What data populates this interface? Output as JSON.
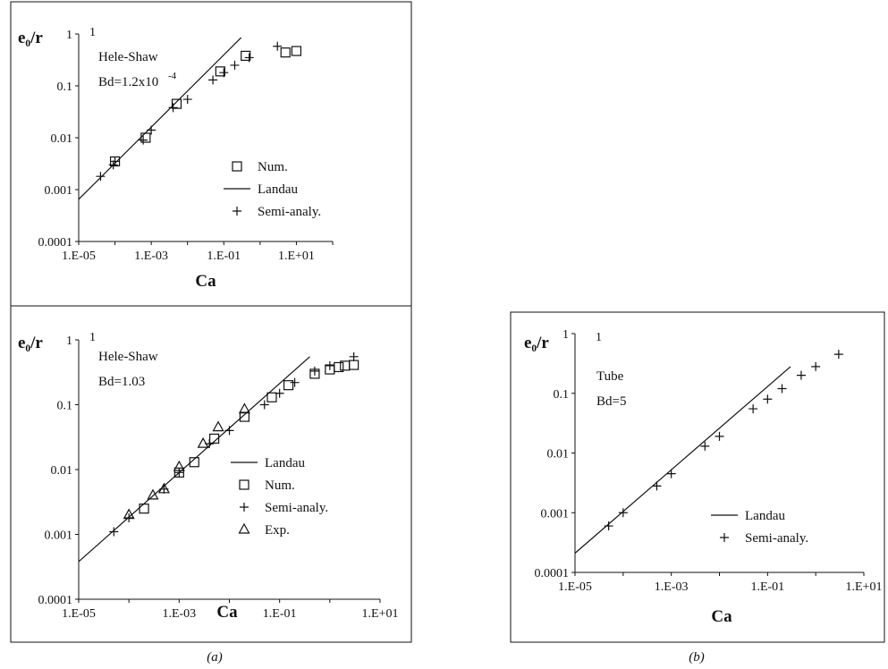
{
  "captions": {
    "a": "(a)",
    "b": "(b)"
  },
  "chart_data": [
    {
      "type": "scatter",
      "panel": "a-top",
      "ylabel": "e₀/r",
      "xlabel": "Ca",
      "xscale": "log",
      "yscale": "log",
      "xlim": [
        1e-05,
        100
      ],
      "ylim": [
        0.0001,
        1
      ],
      "x_ticks": [
        "1.E-05",
        "1.E-03",
        "1.E-01",
        "1.E+01"
      ],
      "y_ticks": [
        "0.0001",
        "0.001",
        "0.01",
        "0.1",
        "1"
      ],
      "annotation": [
        "Hele-Shaw",
        "Bd=1.2x10",
        "-4"
      ],
      "legend": {
        "placement": "bottom-right"
      },
      "series": [
        {
          "name": "Num.",
          "marker": "square",
          "x": [
            0.0001,
            0.0007,
            0.005,
            0.08,
            0.4,
            5,
            10
          ],
          "y": [
            0.0035,
            0.01,
            0.045,
            0.19,
            0.38,
            0.44,
            0.47
          ]
        },
        {
          "name": "Landau",
          "marker": "line",
          "x": [
            1e-05,
            0.3
          ],
          "y": [
            0.00065,
            0.85
          ]
        },
        {
          "name": "Semi-analy.",
          "marker": "plus",
          "x": [
            4e-05,
            9e-05,
            0.0001,
            0.0006,
            0.001,
            0.004,
            0.01,
            0.05,
            0.1,
            0.2,
            0.5,
            3
          ],
          "y": [
            0.0018,
            0.003,
            0.0035,
            0.009,
            0.014,
            0.038,
            0.055,
            0.13,
            0.18,
            0.25,
            0.35,
            0.58
          ]
        }
      ]
    },
    {
      "type": "scatter",
      "panel": "a-bottom",
      "ylabel": "e₀/r",
      "xlabel": "Ca",
      "xscale": "log",
      "yscale": "log",
      "xlim": [
        1e-05,
        10
      ],
      "ylim": [
        0.0001,
        1
      ],
      "x_ticks": [
        "1.E-05",
        "1.E-03",
        "1.E-01",
        "1.E+01"
      ],
      "y_ticks": [
        "0.0001",
        "0.001",
        "0.01",
        "0.1",
        "1"
      ],
      "annotation": [
        "Hele-Shaw",
        "Bd=1.03"
      ],
      "legend": {
        "placement": "bottom-right"
      },
      "series": [
        {
          "name": "Landau",
          "marker": "line",
          "x": [
            1e-05,
            0.4
          ],
          "y": [
            0.00038,
            0.55
          ]
        },
        {
          "name": "Num.",
          "marker": "square",
          "x": [
            0.0002,
            0.001,
            0.002,
            0.005,
            0.02,
            0.07,
            0.15,
            0.5,
            1,
            1.5,
            2,
            3
          ],
          "y": [
            0.0025,
            0.009,
            0.013,
            0.03,
            0.065,
            0.13,
            0.2,
            0.3,
            0.35,
            0.38,
            0.4,
            0.41
          ]
        },
        {
          "name": "Semi-analy.",
          "marker": "plus",
          "x": [
            5e-05,
            0.0001,
            0.0005,
            0.001,
            0.004,
            0.01,
            0.05,
            0.1,
            0.2,
            0.5,
            1,
            3
          ],
          "y": [
            0.0011,
            0.0018,
            0.005,
            0.009,
            0.025,
            0.04,
            0.1,
            0.15,
            0.22,
            0.33,
            0.4,
            0.55
          ]
        },
        {
          "name": "Exp.",
          "marker": "triangle",
          "x": [
            0.0001,
            0.0003,
            0.0005,
            0.001,
            0.003,
            0.006,
            0.02
          ],
          "y": [
            0.002,
            0.004,
            0.005,
            0.011,
            0.025,
            0.045,
            0.085
          ]
        }
      ]
    },
    {
      "type": "scatter",
      "panel": "b",
      "ylabel": "e₀/r",
      "xlabel": "Ca",
      "xscale": "log",
      "yscale": "log",
      "xlim": [
        1e-05,
        10
      ],
      "ylim": [
        0.0001,
        1
      ],
      "x_ticks": [
        "1.E-05",
        "1.E-03",
        "1.E-01",
        "1.E+01"
      ],
      "y_ticks": [
        "0.0001",
        "0.001",
        "0.01",
        "0.1",
        "1"
      ],
      "annotation": [
        "Tube",
        "Bd=5"
      ],
      "legend": {
        "placement": "bottom-right"
      },
      "series": [
        {
          "name": "Landau",
          "marker": "line",
          "x": [
            1e-05,
            0.3
          ],
          "y": [
            0.00021,
            0.28
          ]
        },
        {
          "name": "Semi-analy.",
          "marker": "plus",
          "x": [
            5e-05,
            0.0001,
            0.0005,
            0.001,
            0.005,
            0.01,
            0.05,
            0.1,
            0.2,
            0.5,
            1,
            3
          ],
          "y": [
            0.0006,
            0.001,
            0.0028,
            0.0045,
            0.013,
            0.019,
            0.055,
            0.08,
            0.12,
            0.2,
            0.28,
            0.45
          ]
        }
      ]
    }
  ]
}
